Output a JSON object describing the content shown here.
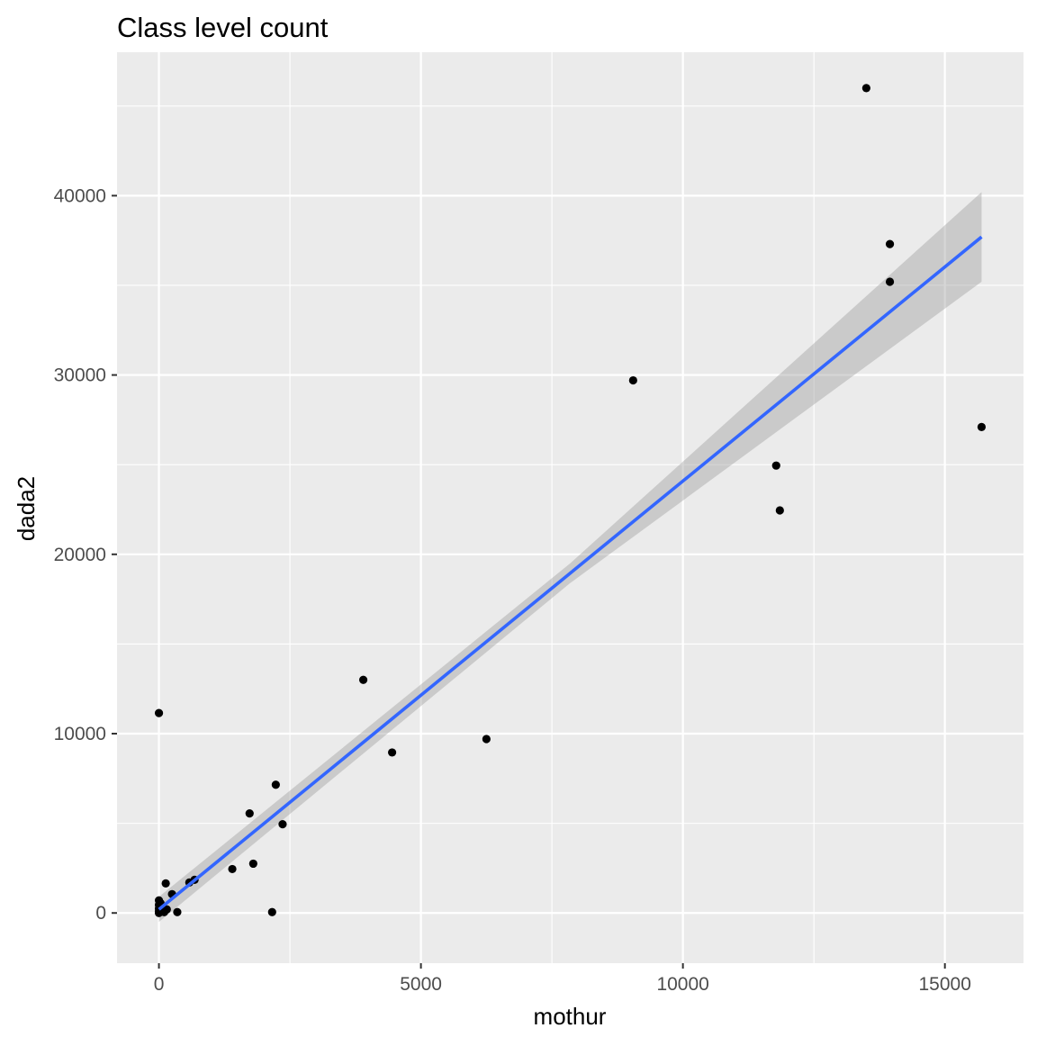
{
  "chart_data": {
    "type": "scatter",
    "title": "Class level count",
    "xlabel": "mothur",
    "ylabel": "dada2",
    "xlim": [
      -800,
      16500
    ],
    "ylim": [
      -2800,
      48000
    ],
    "xticks": [
      0,
      5000,
      10000,
      15000
    ],
    "xtick_labels": [
      "0",
      "5000",
      "10000",
      "15000"
    ],
    "yticks": [
      0,
      10000,
      20000,
      30000,
      40000
    ],
    "ytick_labels": [
      "0",
      "10000",
      "20000",
      "30000",
      "40000"
    ],
    "grid": true,
    "panel_background": "#ebebeb",
    "point_color": "#000000",
    "line_color": "#3366ff",
    "band_color": "#999999",
    "points": [
      {
        "x": 13500,
        "y": 46000
      },
      {
        "x": 13950,
        "y": 37300
      },
      {
        "x": 13950,
        "y": 35200
      },
      {
        "x": 9050,
        "y": 29700
      },
      {
        "x": 15700,
        "y": 27100
      },
      {
        "x": 11780,
        "y": 24950
      },
      {
        "x": 11850,
        "y": 22450
      },
      {
        "x": 3900,
        "y": 13000
      },
      {
        "x": 0,
        "y": 11150
      },
      {
        "x": 6250,
        "y": 9700
      },
      {
        "x": 4450,
        "y": 8950
      },
      {
        "x": 2230,
        "y": 7150
      },
      {
        "x": 1730,
        "y": 5550
      },
      {
        "x": 2360,
        "y": 4950
      },
      {
        "x": 1800,
        "y": 2750
      },
      {
        "x": 1400,
        "y": 2450
      },
      {
        "x": 130,
        "y": 1650
      },
      {
        "x": 680,
        "y": 1850
      },
      {
        "x": 580,
        "y": 1700
      },
      {
        "x": 250,
        "y": 1050
      },
      {
        "x": 2160,
        "y": 50
      },
      {
        "x": 350,
        "y": 50
      },
      {
        "x": 0,
        "y": 700
      },
      {
        "x": 0,
        "y": 450
      },
      {
        "x": 0,
        "y": 250
      },
      {
        "x": 0,
        "y": 100
      },
      {
        "x": 0,
        "y": 0
      },
      {
        "x": 50,
        "y": 350
      },
      {
        "x": 100,
        "y": 50
      },
      {
        "x": 30,
        "y": 550
      },
      {
        "x": 150,
        "y": 200
      }
    ],
    "fit": {
      "method": "lm",
      "x": [
        0,
        15700
      ],
      "y": [
        200,
        37700
      ],
      "band": {
        "x": [
          0,
          7850,
          15700
        ],
        "lower": [
          -500,
          18400,
          35200
        ],
        "upper": [
          900,
          19500,
          40200
        ]
      }
    }
  }
}
